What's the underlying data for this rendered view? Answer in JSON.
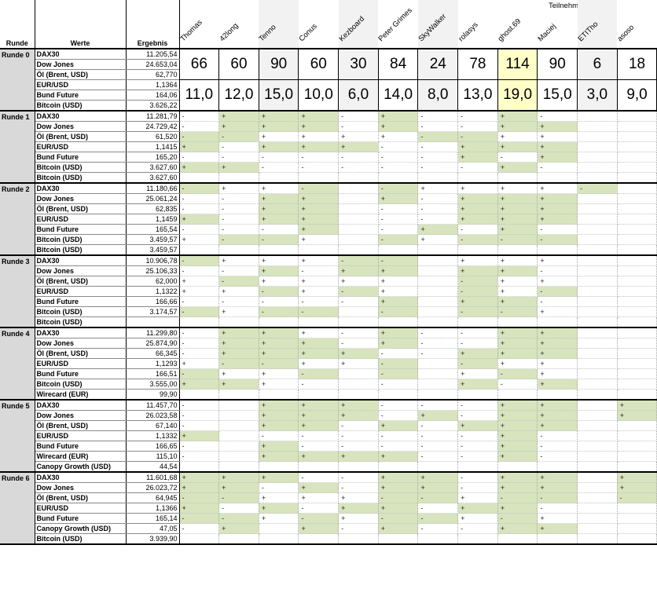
{
  "teilnehmer_label": "Teilnehmer",
  "columns": {
    "runde": "Runde",
    "werte": "Werte",
    "ergebnis": "Ergebnis"
  },
  "participants": [
    "Thomas",
    "42long",
    "Tenno",
    "Conus",
    "Kezboard",
    "Peter Grimes",
    "SkyWalker",
    "rolasys",
    "ghost.69",
    "Maciej",
    "ETITho",
    "asoso"
  ],
  "colors": {
    "correct_green": "#d7e4bd",
    "leader_yellow": "#ffffc8",
    "runde_column_gray": "#d9d9d9",
    "shaded_column": "#f2f2f2"
  },
  "round0": {
    "label": "Runde 0",
    "rows": [
      {
        "werte": "DAX30",
        "ergebnis": "11.205,54"
      },
      {
        "werte": "Dow Jones",
        "ergebnis": "24.653,04"
      },
      {
        "werte": "Öl (Brent, USD)",
        "ergebnis": "62,770"
      },
      {
        "werte": "EUR/USD",
        "ergebnis": "1,1364"
      },
      {
        "werte": "Bund Future",
        "ergebnis": "164,06"
      },
      {
        "werte": "Bitcoin (USD)",
        "ergebnis": "3.626,22"
      }
    ],
    "points": [
      "66",
      "60",
      "90",
      "60",
      "30",
      "84",
      "24",
      "78",
      "114",
      "90",
      "6",
      "18"
    ],
    "averages": [
      "11,0",
      "12,0",
      "15,0",
      "10,0",
      "6,0",
      "14,0",
      "8,0",
      "13,0",
      "19,0",
      "15,0",
      "3,0",
      "9,0"
    ],
    "highlight_index": 8,
    "shaded_indices": [
      2,
      4,
      6,
      10
    ]
  },
  "rounds": [
    {
      "label": "Runde 1",
      "rows": [
        {
          "werte": "DAX30",
          "ergebnis": "11.281,79",
          "marks": [
            "-",
            "+g",
            "+g",
            "+g",
            "-",
            "+g",
            "-",
            "-",
            "+g",
            "-",
            "",
            ""
          ]
        },
        {
          "werte": "Dow Jones",
          "ergebnis": "24.729,42",
          "marks": [
            "-",
            "+g",
            "+g",
            "+g",
            "-",
            "+g",
            "-",
            "-",
            "+g",
            "+g",
            "",
            ""
          ]
        },
        {
          "werte": "Öl (Brent, USD)",
          "ergebnis": "61,520",
          "marks": [
            "-g",
            "-g",
            "+",
            "+",
            "+",
            "+",
            "-g",
            "-g",
            "+",
            "+",
            "",
            ""
          ]
        },
        {
          "werte": "EUR/USD",
          "ergebnis": "1,1415",
          "marks": [
            "+g",
            "-",
            "+g",
            "+g",
            "+g",
            "-",
            "-",
            "+g",
            "+g",
            "+g",
            "",
            ""
          ]
        },
        {
          "werte": "Bund Future",
          "ergebnis": "165,20",
          "marks": [
            "-",
            "-",
            "-",
            "-",
            "-",
            "-",
            "-",
            "+g",
            "-",
            "+g",
            "",
            ""
          ]
        },
        {
          "werte": "Bitcoin (USD)",
          "ergebnis": "3.627,60",
          "marks": [
            "+g",
            "+g",
            "-",
            "-",
            "-",
            "-",
            "-",
            "-",
            "+g",
            "-",
            "",
            ""
          ]
        },
        {
          "werte": "Bitcoin (USD)",
          "ergebnis": "3.627,60",
          "marks": [
            "",
            "",
            "",
            "",
            "",
            "",
            "",
            "",
            "",
            "",
            "",
            ""
          ]
        }
      ]
    },
    {
      "label": "Runde 2",
      "rows": [
        {
          "werte": "DAX30",
          "ergebnis": "11.180,66",
          "marks": [
            "-g",
            "+",
            "+",
            "-g",
            "",
            "-g",
            "+",
            "+",
            "+",
            "+",
            "-g",
            ""
          ]
        },
        {
          "werte": "Dow Jones",
          "ergebnis": "25.061,24",
          "marks": [
            "-",
            "-",
            "+g",
            "+g",
            "",
            "+g",
            "-",
            "+g",
            "+g",
            "+g",
            "",
            ""
          ]
        },
        {
          "werte": "Öl (Brent, USD)",
          "ergebnis": "62,835",
          "marks": [
            "-",
            "-",
            "+g",
            "+g",
            "",
            "-",
            "-",
            "+g",
            "+g",
            "+g",
            "",
            ""
          ]
        },
        {
          "werte": "EUR/USD",
          "ergebnis": "1,1459",
          "marks": [
            "+g",
            "-",
            "+g",
            "+g",
            "",
            "-",
            "-",
            "+g",
            "+g",
            "+g",
            "",
            ""
          ]
        },
        {
          "werte": "Bund Future",
          "ergebnis": "165,54",
          "marks": [
            "-",
            "-",
            "-",
            "+g",
            "",
            "-",
            "+g",
            "-",
            "+g",
            "-",
            "",
            ""
          ]
        },
        {
          "werte": "Bitcoin (USD)",
          "ergebnis": "3.459,57",
          "marks": [
            "+",
            "-g",
            "-g",
            "+",
            "",
            "-g",
            "+",
            "-g",
            "-g",
            "-g",
            "",
            ""
          ]
        },
        {
          "werte": "Bitcoin (USD)",
          "ergebnis": "3.459,57",
          "marks": [
            "",
            "",
            "",
            "",
            "",
            "",
            "",
            "",
            "",
            "",
            "",
            ""
          ]
        }
      ]
    },
    {
      "label": "Runde 3",
      "rows": [
        {
          "werte": "DAX30",
          "ergebnis": "10.906,78",
          "marks": [
            "-g",
            "+",
            "+",
            "+",
            "-g",
            "-g",
            "",
            "+",
            "+",
            "+",
            "",
            ""
          ]
        },
        {
          "werte": "Dow Jones",
          "ergebnis": "25.106,33",
          "marks": [
            "-",
            "-",
            "+g",
            "-",
            "+g",
            "+g",
            "",
            "+g",
            "+g",
            "-",
            "",
            ""
          ]
        },
        {
          "werte": "Öl (Brent, USD)",
          "ergebnis": "62,000",
          "marks": [
            "+",
            "-g",
            "+",
            "+",
            "+",
            "+",
            "",
            "-g",
            "+",
            "+",
            "",
            ""
          ]
        },
        {
          "werte": "EUR/USD",
          "ergebnis": "1,1322",
          "marks": [
            "+",
            "+",
            "-g",
            "+",
            "-g",
            "+",
            "",
            "-g",
            "+",
            "-g",
            "",
            ""
          ]
        },
        {
          "werte": "Bund Future",
          "ergebnis": "166,66",
          "marks": [
            "-",
            "-",
            "-",
            "-",
            "-",
            "+g",
            "",
            "+g",
            "+g",
            "-",
            "",
            ""
          ]
        },
        {
          "werte": "Bitcoin (USD)",
          "ergebnis": "3.174,57",
          "marks": [
            "-g",
            "+",
            "-g",
            "-g",
            "",
            "-g",
            "",
            "-g",
            "-g",
            "+",
            "",
            ""
          ]
        },
        {
          "werte": "Bitcoin (USD)",
          "ergebnis": "",
          "marks": [
            "",
            "",
            "",
            "",
            "",
            "",
            "",
            "",
            "",
            "",
            "",
            ""
          ]
        }
      ]
    },
    {
      "label": "Runde 4",
      "rows": [
        {
          "werte": "DAX30",
          "ergebnis": "11.299,80",
          "marks": [
            "-",
            "+g",
            "+g",
            "+",
            "-",
            "+g",
            "-",
            "-",
            "+g",
            "+g",
            "",
            ""
          ]
        },
        {
          "werte": "Dow Jones",
          "ergebnis": "25.874,90",
          "marks": [
            "-",
            "+g",
            "+g",
            "+g",
            "-",
            "+g",
            "-",
            "-",
            "+g",
            "+g",
            "",
            ""
          ]
        },
        {
          "werte": "Öl (Brent, USD)",
          "ergebnis": "66,345",
          "marks": [
            "-",
            "+g",
            "+g",
            "+g",
            "+g",
            "-",
            "-",
            "+g",
            "+g",
            "+g",
            "",
            ""
          ]
        },
        {
          "werte": "EUR/USD",
          "ergebnis": "1,1293",
          "marks": [
            "+",
            "-g",
            "-g",
            "+",
            "+",
            "-g",
            "",
            "-g",
            "+",
            "+",
            "",
            ""
          ]
        },
        {
          "werte": "Bund Future",
          "ergebnis": "166,51",
          "marks": [
            "-g",
            "+",
            "+",
            "-g",
            "",
            "-g",
            "",
            "+",
            "-g",
            "+",
            "",
            ""
          ]
        },
        {
          "werte": "Bitcoin (USD)",
          "ergebnis": "3.555,00",
          "marks": [
            "+g",
            "+g",
            "+",
            "-",
            "",
            "-",
            "",
            "+g",
            "-",
            "+g",
            "",
            ""
          ]
        },
        {
          "werte": "Wirecard (EUR)",
          "ergebnis": "99,90",
          "marks": [
            "",
            "",
            "",
            "",
            "",
            "",
            "",
            "",
            "",
            "",
            "",
            ""
          ]
        }
      ]
    },
    {
      "label": "Runde 5",
      "rows": [
        {
          "werte": "DAX30",
          "ergebnis": "11.457,70",
          "marks": [
            "-",
            "",
            "+g",
            "+g",
            "+g",
            "-",
            "-",
            "-",
            "+g",
            "+g",
            "",
            "+g"
          ]
        },
        {
          "werte": "Dow Jones",
          "ergebnis": "26.023,58",
          "marks": [
            "-",
            "",
            "+g",
            "+g",
            "+g",
            "-",
            "+g",
            "-",
            "+g",
            "+g",
            "",
            "+g"
          ]
        },
        {
          "werte": "Öl (Brent, USD)",
          "ergebnis": "67,140",
          "marks": [
            "-",
            "",
            "+g",
            "+g",
            "-",
            "+g",
            "-",
            "+g",
            "+g",
            "+g",
            "",
            ""
          ]
        },
        {
          "werte": "EUR/USD",
          "ergebnis": "1,1332",
          "marks": [
            "+g",
            "",
            "-",
            "-",
            "-",
            "-",
            "-",
            "-",
            "+g",
            "-",
            "",
            ""
          ]
        },
        {
          "werte": "Bund Future",
          "ergebnis": "166,65",
          "marks": [
            "-",
            "",
            "+g",
            "-",
            "-",
            "-",
            "-",
            "-",
            "+g",
            "-",
            "",
            ""
          ]
        },
        {
          "werte": "Wirecard (EUR)",
          "ergebnis": "115,10",
          "marks": [
            "-",
            "",
            "+g",
            "+g",
            "+g",
            "+g",
            "-",
            "-",
            "+g",
            "-",
            "",
            ""
          ]
        },
        {
          "werte": "Canopy Growth (USD)",
          "ergebnis": "44,54",
          "marks": [
            "",
            "",
            "",
            "",
            "",
            "",
            "",
            "",
            "",
            "",
            "",
            ""
          ]
        }
      ]
    },
    {
      "label": "Runde 6",
      "rows": [
        {
          "werte": "DAX30",
          "ergebnis": "11.601,68",
          "marks": [
            "+g",
            "+g",
            "+g",
            "-",
            "-",
            "+g",
            "+g",
            "-",
            "+g",
            "+g",
            "",
            "+g"
          ]
        },
        {
          "werte": "Dow Jones",
          "ergebnis": "26.023,72",
          "marks": [
            "+g",
            "+g",
            "-",
            "+g",
            "-",
            "+g",
            "+g",
            "-",
            "+g",
            "+g",
            "",
            "+g"
          ]
        },
        {
          "werte": "Öl (Brent, USD)",
          "ergebnis": "64,945",
          "marks": [
            "-g",
            "-g",
            "+",
            "+",
            "+",
            "-g",
            "-g",
            "+",
            "-g",
            "-g",
            "",
            "-g"
          ]
        },
        {
          "werte": "EUR/USD",
          "ergebnis": "1,1366",
          "marks": [
            "+g",
            "-",
            "+g",
            "-",
            "+g",
            "+g",
            "-",
            "+g",
            "+g",
            "-",
            "",
            ""
          ]
        },
        {
          "werte": "Bund Future",
          "ergebnis": "165,14",
          "marks": [
            "-g",
            "-g",
            "+",
            "-g",
            "+",
            "-g",
            "-g",
            "+",
            "-g",
            "+",
            "",
            ""
          ]
        },
        {
          "werte": "Canopy Growth (USD)",
          "ergebnis": "47,05",
          "marks": [
            "-",
            "+g",
            "",
            "+g",
            "-",
            "+g",
            "-",
            "-",
            "+g",
            "+g",
            "",
            ""
          ]
        },
        {
          "werte": "Bitcoin (USD)",
          "ergebnis": "3.939,90",
          "marks": [
            "",
            "",
            "",
            "",
            "",
            "",
            "",
            "",
            "",
            "",
            "",
            ""
          ]
        }
      ]
    }
  ]
}
